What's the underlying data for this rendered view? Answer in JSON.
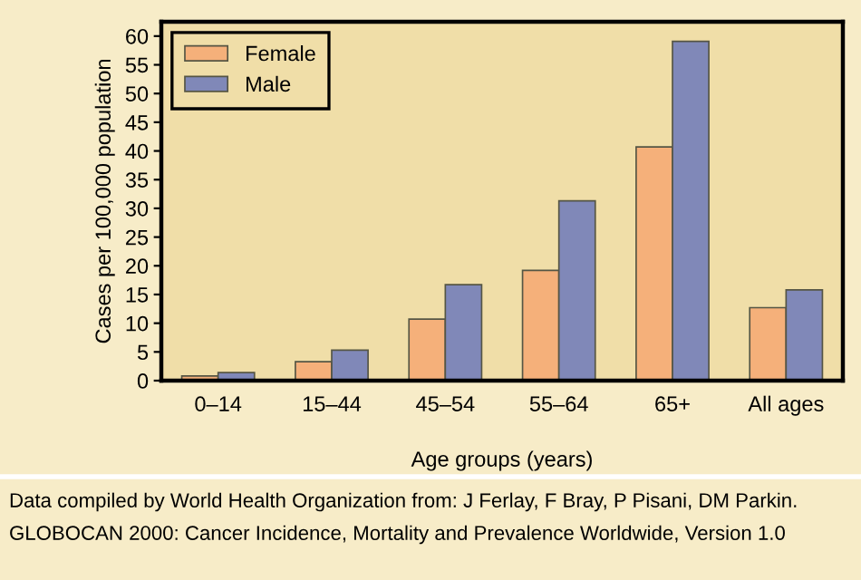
{
  "chart_data": {
    "type": "bar",
    "xlabel": "Age groups (years)",
    "ylabel": "Cases per 100,000 population",
    "categories": [
      "0–14",
      "15–44",
      "45–54",
      "55–64",
      "65+",
      "All ages"
    ],
    "series": [
      {
        "name": "Female",
        "color": "#f5b07a",
        "values": [
          0.8,
          3.3,
          10.7,
          19.2,
          40.7,
          12.7
        ]
      },
      {
        "name": "Male",
        "color": "#8088b8",
        "values": [
          1.4,
          5.3,
          16.7,
          31.3,
          59.1,
          15.8
        ]
      }
    ],
    "ylim": [
      0,
      62.5
    ],
    "yticks": [
      0,
      5,
      10,
      15,
      20,
      25,
      30,
      35,
      40,
      45,
      50,
      55,
      60
    ],
    "grid": false,
    "legend": "top left",
    "annotations": [
      "Data compiled by World Health Organization from: J Ferlay, F Bray, P Pisani, DM Parkin.",
      "GLOBOCAN 2000: Cancer Incidence, Mortality and Prevalence Worldwide, Version 1.0"
    ]
  }
}
